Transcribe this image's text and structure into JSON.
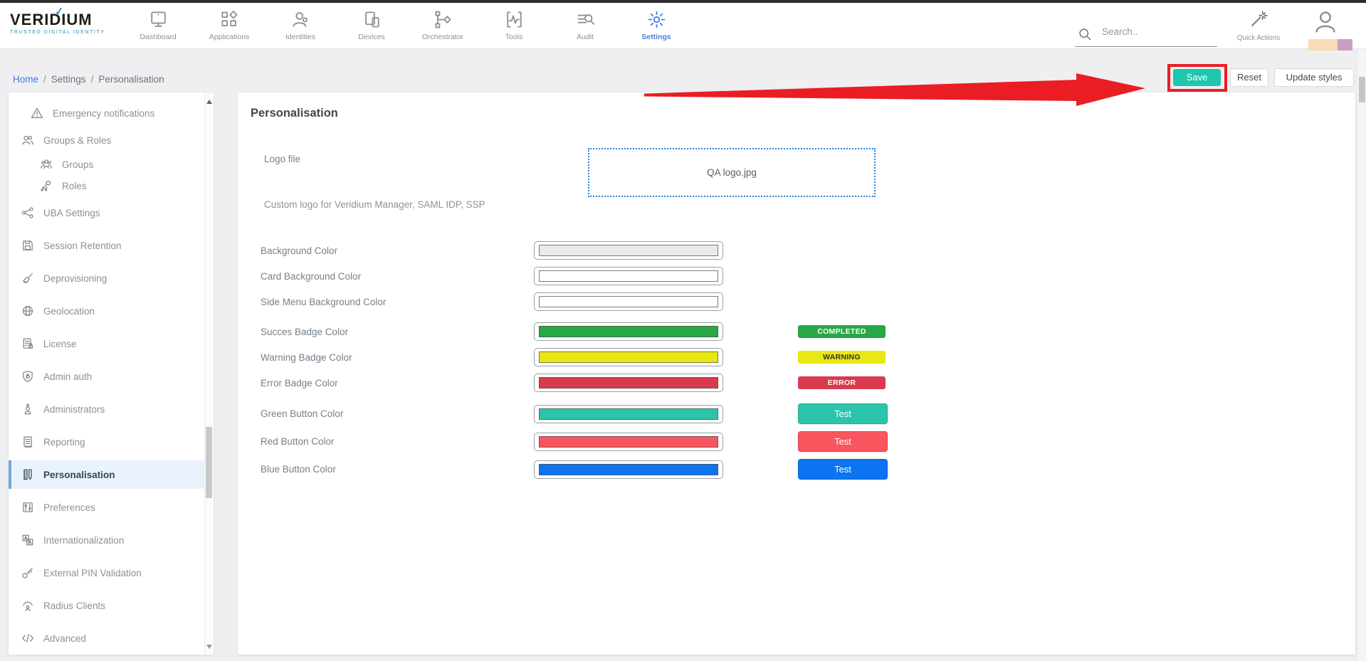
{
  "topbar": {
    "brand": "VERIDIUM",
    "tagline": "TRUSTED DIGITAL IDENTITY",
    "nav": [
      {
        "label": "Dashboard",
        "icon": "monitor-icon",
        "active": false
      },
      {
        "label": "Applications",
        "icon": "apps-icon",
        "active": false
      },
      {
        "label": "Identities",
        "icon": "identities-icon",
        "active": false
      },
      {
        "label": "Devices",
        "icon": "devices-icon",
        "active": false
      },
      {
        "label": "Orchestrator",
        "icon": "orchestrator-icon",
        "active": false
      },
      {
        "label": "Tools",
        "icon": "tools-icon",
        "active": false
      },
      {
        "label": "Audit",
        "icon": "audit-icon",
        "active": false
      },
      {
        "label": "Settings",
        "icon": "gear-icon",
        "active": true
      }
    ],
    "search": {
      "placeholder": "Search..",
      "icon": "search-icon"
    },
    "quick_actions": {
      "label": "Quick Actions",
      "icon": "wand-icon"
    },
    "avatar": {
      "icon": "user-icon",
      "bar_colors": [
        "#f8dcb6",
        "#c99fc4"
      ]
    }
  },
  "breadcrumb": {
    "separator": "/",
    "items": [
      {
        "label": "Home",
        "link": true
      },
      {
        "label": "Settings",
        "link": false
      },
      {
        "label": "Personalisation",
        "link": false
      }
    ]
  },
  "actions": {
    "save": "Save",
    "reset": "Reset",
    "update_styles": "Update styles",
    "save_color": "#1ec7ac"
  },
  "annotation": {
    "shape": "red-arrow-pointing-to-save-button",
    "color": "#ea1d25"
  },
  "sidebar": {
    "items": [
      {
        "label": "",
        "icon": "clipped-icon",
        "size": "clip",
        "indent": 1,
        "active": false
      },
      {
        "label": "Emergency notifications",
        "icon": "warning-icon",
        "size": "short",
        "indent": 1,
        "active": false
      },
      {
        "label": "Groups & Roles",
        "icon": "users-icon",
        "size": "short",
        "indent": 0,
        "active": false
      },
      {
        "label": "Groups",
        "icon": "group-icon",
        "size": "compact",
        "indent": 2,
        "active": false
      },
      {
        "label": "Roles",
        "icon": "roles-icon",
        "size": "compact",
        "indent": 2,
        "active": false
      },
      {
        "label": "UBA Settings",
        "icon": "network-icon",
        "size": "normal",
        "indent": 0,
        "active": false
      },
      {
        "label": "Session Retention",
        "icon": "floppy-icon",
        "size": "normal",
        "indent": 0,
        "active": false
      },
      {
        "label": "Deprovisioning",
        "icon": "broom-icon",
        "size": "normal",
        "indent": 0,
        "active": false
      },
      {
        "label": "Geolocation",
        "icon": "globe-icon",
        "size": "normal",
        "indent": 0,
        "active": false
      },
      {
        "label": "License",
        "icon": "license-icon",
        "size": "normal",
        "indent": 0,
        "active": false
      },
      {
        "label": "Admin auth",
        "icon": "shield-lock-icon",
        "size": "normal",
        "indent": 0,
        "active": false
      },
      {
        "label": "Administrators",
        "icon": "admin-user-icon",
        "size": "normal",
        "indent": 0,
        "active": false
      },
      {
        "label": "Reporting",
        "icon": "report-icon",
        "size": "normal",
        "indent": 0,
        "active": false
      },
      {
        "label": "Personalisation",
        "icon": "ruler-pencil-icon",
        "size": "normal",
        "indent": 0,
        "active": true
      },
      {
        "label": "Preferences",
        "icon": "preferences-icon",
        "size": "normal",
        "indent": 0,
        "active": false
      },
      {
        "label": "Internationalization",
        "icon": "translate-icon",
        "size": "normal",
        "indent": 0,
        "active": false
      },
      {
        "label": "External PIN Validation",
        "icon": "key-icon",
        "size": "normal",
        "indent": 0,
        "active": false
      },
      {
        "label": "Radius Clients",
        "icon": "broadcast-icon",
        "size": "normal",
        "indent": 0,
        "active": false
      },
      {
        "label": "Advanced",
        "icon": "code-icon",
        "size": "normal",
        "indent": 0,
        "active": false
      }
    ]
  },
  "main": {
    "title": "Personalisation",
    "logo_file": {
      "label": "Logo file",
      "value": "QA logo.jpg",
      "hint": "Custom logo for Veridium Manager, SAML IDP, SSP"
    },
    "color_fields": [
      {
        "label": "Background Color",
        "value": "#eaeaea",
        "group": "background",
        "preview": null
      },
      {
        "label": "Card Background Color",
        "value": "#ffffff",
        "group": "background",
        "preview": null
      },
      {
        "label": "Side Menu Background Color",
        "value": "#ffffff",
        "group": "background",
        "preview": null
      },
      {
        "label": "Succes Badge Color",
        "value": "#28a745",
        "group": "badge",
        "preview": {
          "kind": "badge",
          "text": "COMPLETED",
          "text_color": "#ffffff"
        }
      },
      {
        "label": "Warning Badge Color",
        "value": "#e9e714",
        "group": "badge",
        "preview": {
          "kind": "badge",
          "text": "WARNING",
          "text_color": "#333333"
        }
      },
      {
        "label": "Error Badge Color",
        "value": "#da3a4e",
        "group": "badge",
        "preview": {
          "kind": "badge",
          "text": "ERROR",
          "text_color": "#ffffff"
        }
      },
      {
        "label": "Green Button Color",
        "value": "#2cc5ab",
        "group": "button",
        "preview": {
          "kind": "button",
          "text": "Test",
          "text_color": "#ffffff"
        }
      },
      {
        "label": "Red Button Color",
        "value": "#f8555f",
        "group": "button",
        "preview": {
          "kind": "button",
          "text": "Test",
          "text_color": "#ffffff"
        }
      },
      {
        "label": "Blue Button Color",
        "value": "#0c74f0",
        "group": "button",
        "preview": {
          "kind": "button",
          "text": "Test",
          "text_color": "#ffffff"
        }
      }
    ]
  }
}
